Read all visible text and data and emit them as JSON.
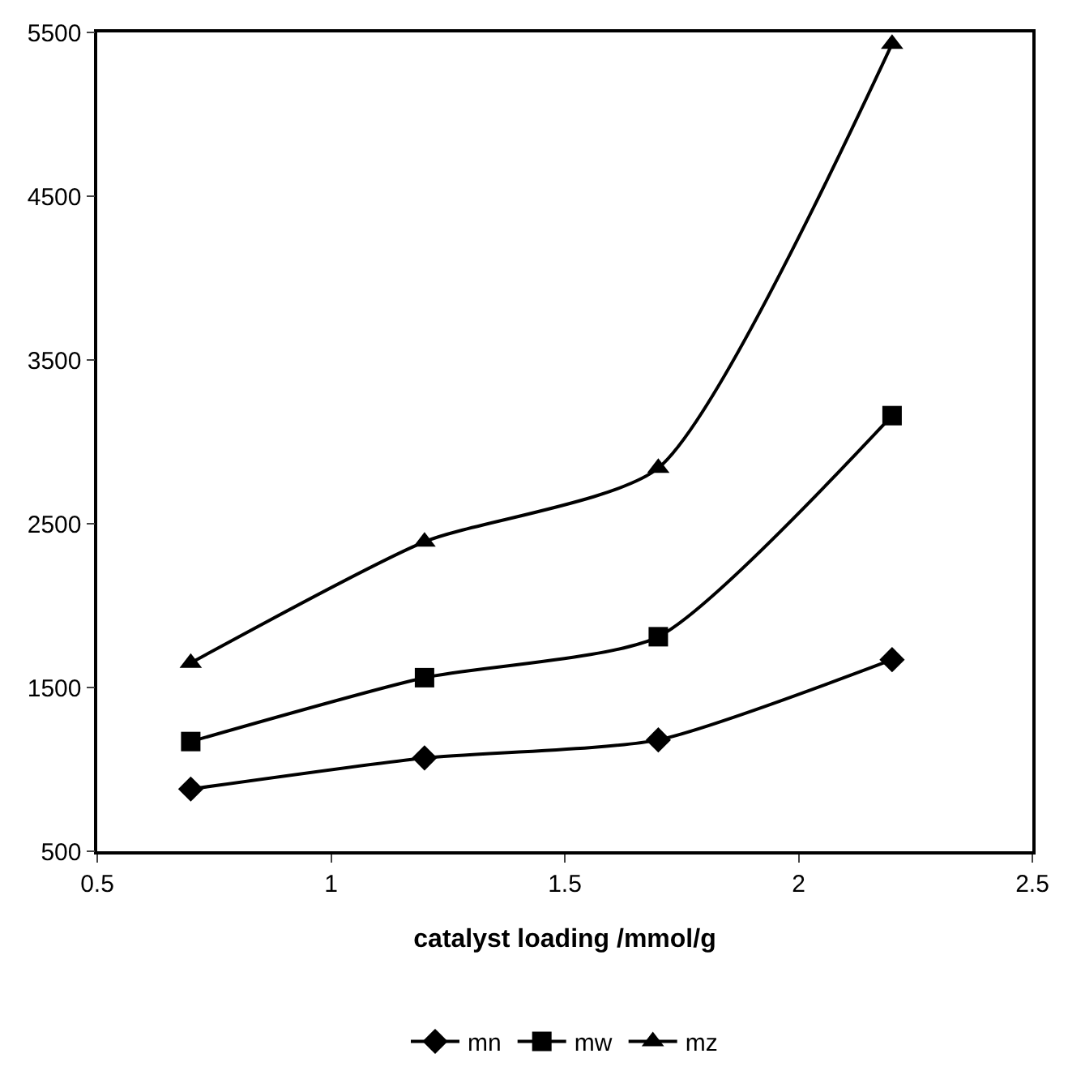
{
  "chart_data": {
    "type": "line",
    "xlabel": "catalyst loading /mmol/g",
    "x": [
      0.7,
      1.2,
      1.7,
      2.2
    ],
    "series": [
      {
        "name": "mn",
        "color": "#000000",
        "marker": "diamond",
        "values": [
          880,
          1070,
          1180,
          1670
        ]
      },
      {
        "name": "mw",
        "color": "#000000",
        "marker": "square",
        "values": [
          1170,
          1560,
          1810,
          3160
        ]
      },
      {
        "name": "mz",
        "color": "#000000",
        "marker": "triangle",
        "values": [
          1650,
          2390,
          2840,
          5430
        ]
      }
    ],
    "xlim": [
      0.5,
      2.5
    ],
    "xticks": [
      0.5,
      1,
      1.5,
      2,
      2.5
    ],
    "ylim": [
      500,
      5500
    ],
    "yticks": [
      500,
      1500,
      2500,
      3500,
      4500,
      5500
    ],
    "legend": "bottom",
    "line_style": "solid"
  }
}
